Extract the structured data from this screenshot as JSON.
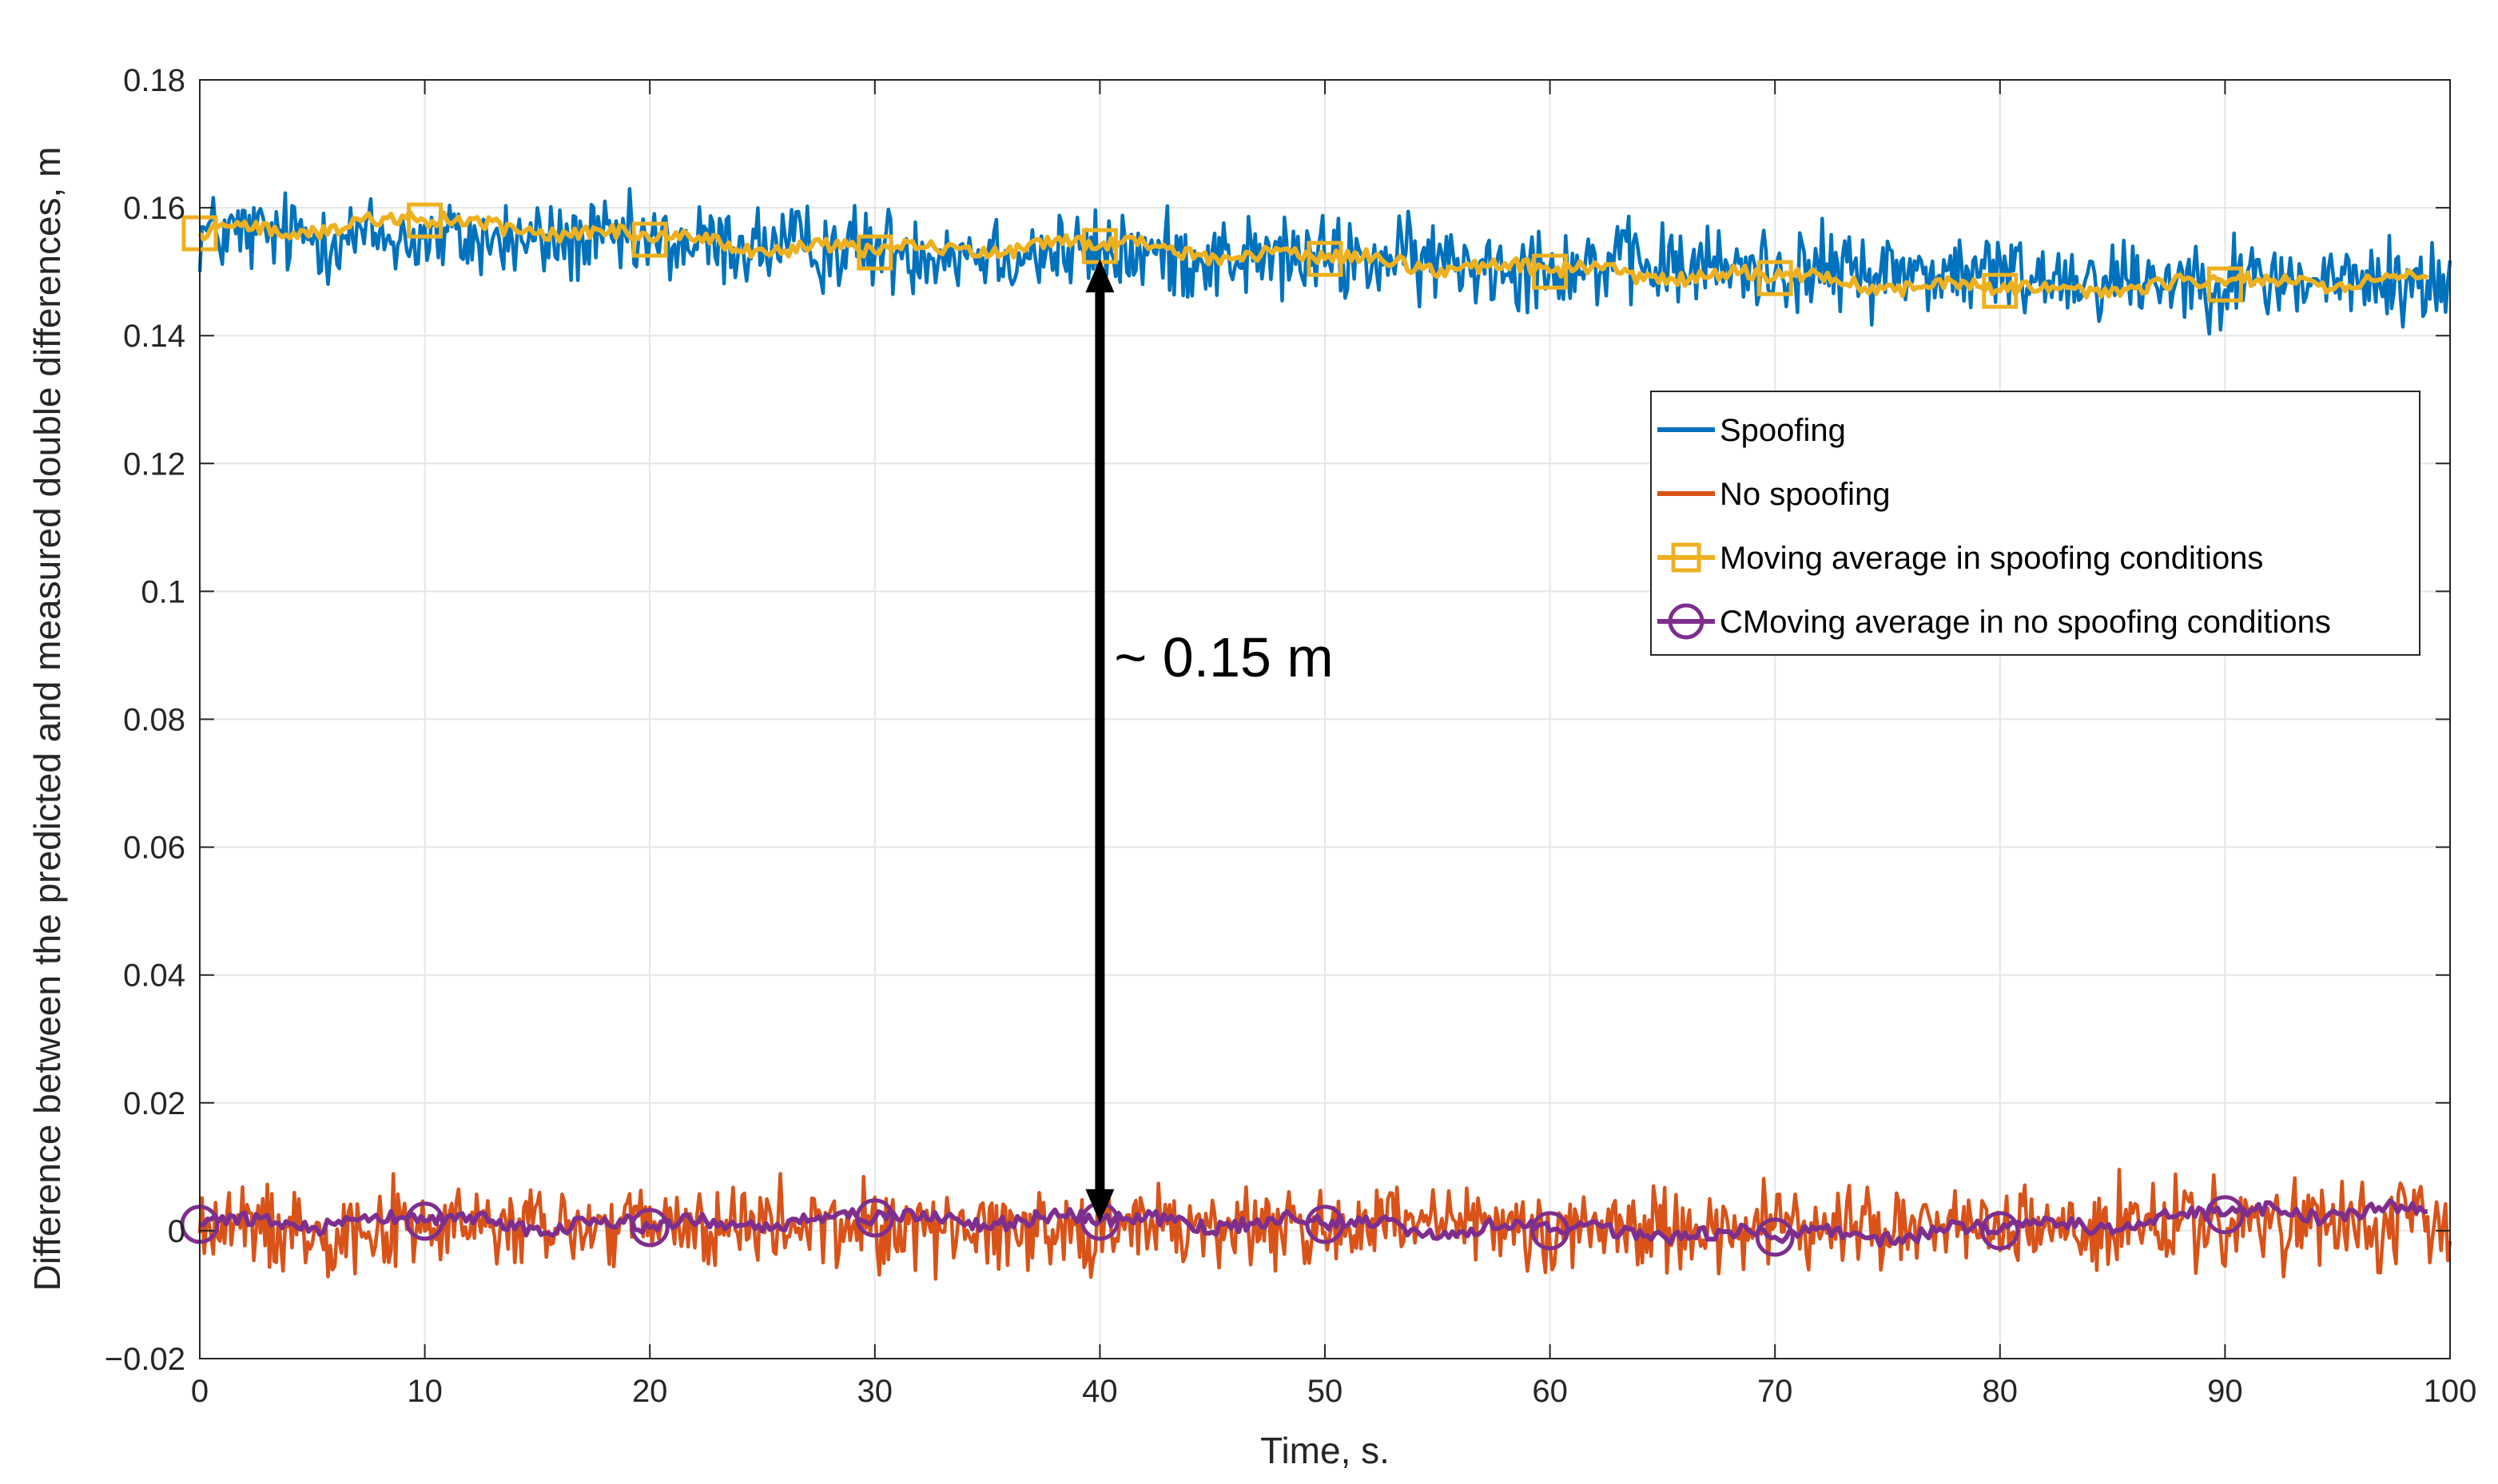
{
  "chart_data": {
    "type": "line",
    "title": "",
    "xlabel": "Time, s.",
    "ylabel": "Difference between the predicted and measured double differences, m",
    "xlim": [
      0,
      100
    ],
    "ylim": [
      -0.02,
      0.18
    ],
    "grid": true,
    "x_ticks": [
      0,
      10,
      20,
      30,
      40,
      50,
      60,
      70,
      80,
      90,
      100
    ],
    "x_tick_labels": [
      "0",
      "10",
      "20",
      "30",
      "40",
      "50",
      "60",
      "70",
      "80",
      "90",
      "100"
    ],
    "y_ticks": [
      -0.02,
      0,
      0.02,
      0.04,
      0.06,
      0.08,
      0.1,
      0.12,
      0.14,
      0.16,
      0.18
    ],
    "y_tick_labels": [
      "−0.02",
      "0",
      "0.02",
      "0.04",
      "0.06",
      "0.08",
      "0.1",
      "0.12",
      "0.14",
      "0.16",
      "0.18"
    ],
    "legend_position": "right, upper-middle",
    "series": [
      {
        "name": "Spoofing",
        "color": "#0072BD",
        "marker": "none",
        "mean": 0.152,
        "noise_amplitude": 0.006,
        "x_range": [
          0,
          100
        ],
        "samples": 1000
      },
      {
        "name": "No spoofing",
        "color": "#D95319",
        "marker": "none",
        "mean": 0.0005,
        "noise_amplitude": 0.006,
        "x_range": [
          0,
          100
        ],
        "samples": 1000
      },
      {
        "name": "Moving average in spoofing conditions",
        "color": "#EDB120",
        "marker": "square",
        "x": [
          0,
          10,
          20,
          30,
          40,
          50,
          60,
          70,
          80,
          90,
          99
        ],
        "values": [
          0.156,
          0.158,
          0.155,
          0.153,
          0.154,
          0.152,
          0.15,
          0.149,
          0.147,
          0.148,
          0.149
        ]
      },
      {
        "name": "CMoving average in no spoofing conditions",
        "color": "#7E2F8E",
        "marker": "circle",
        "x": [
          0,
          10,
          20,
          30,
          40,
          50,
          60,
          70,
          80,
          90,
          99
        ],
        "values": [
          0.001,
          0.0015,
          0.0005,
          0.002,
          0.0015,
          0.001,
          0.0,
          -0.001,
          0.0,
          0.0025,
          0.003
        ]
      }
    ],
    "annotations": [
      {
        "text": "~ 0.15 m",
        "type": "double-arrow",
        "x": 40,
        "y_from": 0.0,
        "y_to": 0.153
      }
    ]
  },
  "colors": {
    "background": "#ffffff",
    "grid": "#e6e6e6",
    "axis": "#262626",
    "arrow": "#000000"
  }
}
